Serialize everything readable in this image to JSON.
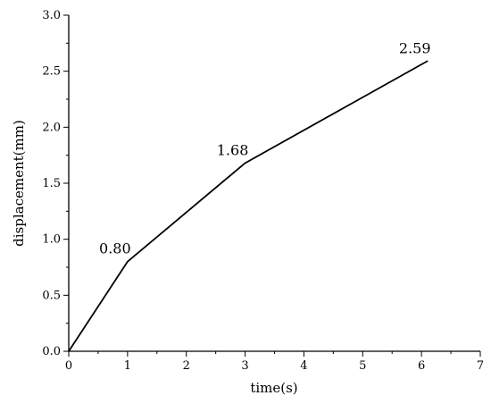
{
  "chart_data": {
    "type": "line",
    "title": "",
    "xlabel": "time(s)",
    "ylabel": "displacement(mm)",
    "xlim": [
      0,
      7
    ],
    "ylim": [
      0,
      3.0
    ],
    "x_ticks": [
      "0",
      "1",
      "2",
      "3",
      "4",
      "5",
      "6",
      "7"
    ],
    "y_ticks": [
      "0.0",
      "0.5",
      "1.0",
      "1.5",
      "2.0",
      "2.5",
      "3.0"
    ],
    "grid": false,
    "series": [
      {
        "x": [
          0,
          1,
          3,
          6.1
        ],
        "y": [
          0,
          0.8,
          1.68,
          2.59
        ],
        "color": "#000000"
      }
    ],
    "data_labels": [
      "0.80",
      "1.68",
      "2.59"
    ]
  }
}
